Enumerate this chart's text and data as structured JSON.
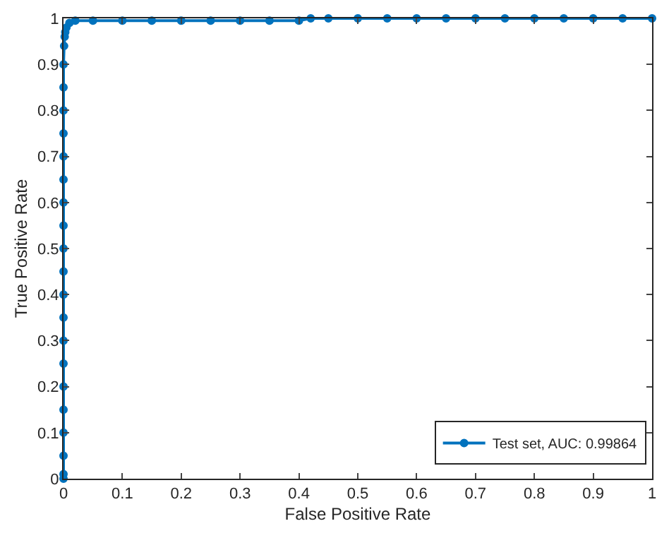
{
  "chart_data": {
    "type": "line",
    "xlabel": "False Positive Rate",
    "ylabel": "True Positive Rate",
    "xlim": [
      0,
      1
    ],
    "ylim": [
      0,
      1
    ],
    "xticks": [
      0,
      0.1,
      0.2,
      0.3,
      0.4,
      0.5,
      0.6,
      0.7,
      0.8,
      0.9,
      1
    ],
    "yticks": [
      0,
      0.1,
      0.2,
      0.3,
      0.4,
      0.5,
      0.6,
      0.7,
      0.8,
      0.9,
      1
    ],
    "x": [
      0,
      0,
      0,
      0,
      0,
      0,
      0,
      0,
      0,
      0,
      0,
      0,
      0,
      0,
      0,
      0,
      0,
      0,
      0,
      0,
      0.001,
      0.002,
      0.003,
      0.005,
      0.01,
      0.02,
      0.05,
      0.1,
      0.15,
      0.2,
      0.25,
      0.3,
      0.35,
      0.4,
      0.42,
      0.45,
      0.5,
      0.55,
      0.6,
      0.65,
      0.7,
      0.75,
      0.8,
      0.85,
      0.9,
      0.95,
      1
    ],
    "series": [
      {
        "name": "Test set, AUC: 0.99864",
        "color": "#0072bd",
        "values": [
          0,
          0.01,
          0.05,
          0.1,
          0.15,
          0.2,
          0.25,
          0.3,
          0.35,
          0.4,
          0.45,
          0.5,
          0.55,
          0.6,
          0.65,
          0.7,
          0.75,
          0.8,
          0.85,
          0.9,
          0.94,
          0.96,
          0.97,
          0.98,
          0.99,
          0.995,
          0.995,
          0.995,
          0.995,
          0.995,
          0.995,
          0.995,
          0.995,
          0.995,
          1,
          1,
          1,
          1,
          1,
          1,
          1,
          1,
          1,
          1,
          1,
          1,
          1
        ]
      }
    ],
    "marker": "circle",
    "legend": "bottom right"
  }
}
